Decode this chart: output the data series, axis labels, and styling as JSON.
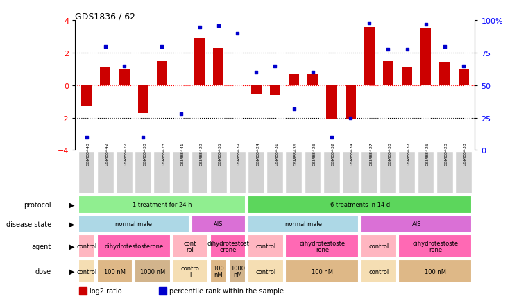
{
  "title": "GDS1836 / 62",
  "samples": [
    "GSM88440",
    "GSM88442",
    "GSM88422",
    "GSM88438",
    "GSM88423",
    "GSM88441",
    "GSM88429",
    "GSM88435",
    "GSM88439",
    "GSM88424",
    "GSM88431",
    "GSM88436",
    "GSM88426",
    "GSM88432",
    "GSM88434",
    "GSM88427",
    "GSM88430",
    "GSM88437",
    "GSM88425",
    "GSM88428",
    "GSM88433"
  ],
  "log2_ratio": [
    -1.3,
    1.1,
    1.0,
    -1.7,
    1.5,
    0.0,
    2.9,
    2.3,
    0.0,
    -0.5,
    -0.6,
    0.7,
    0.7,
    -2.1,
    -2.1,
    3.6,
    1.5,
    1.1,
    3.5,
    1.4,
    1.0
  ],
  "percentile": [
    10,
    80,
    65,
    10,
    80,
    28,
    95,
    96,
    90,
    60,
    65,
    32,
    60,
    10,
    25,
    98,
    78,
    78,
    97,
    80,
    65
  ],
  "protocol_groups": [
    {
      "label": "1 treatment for 24 h",
      "start": 0,
      "end": 8,
      "color": "#90EE90"
    },
    {
      "label": "6 treatments in 14 d",
      "start": 9,
      "end": 20,
      "color": "#5CD65C"
    }
  ],
  "disease_state_groups": [
    {
      "label": "normal male",
      "start": 0,
      "end": 5,
      "color": "#ADD8E6"
    },
    {
      "label": "AIS",
      "start": 6,
      "end": 8,
      "color": "#DA70D6"
    },
    {
      "label": "normal male",
      "start": 9,
      "end": 14,
      "color": "#ADD8E6"
    },
    {
      "label": "AIS",
      "start": 15,
      "end": 20,
      "color": "#DA70D6"
    }
  ],
  "agent_groups": [
    {
      "label": "control",
      "start": 0,
      "end": 0,
      "color": "#FFB6C1"
    },
    {
      "label": "dihydrotestosterone",
      "start": 1,
      "end": 4,
      "color": "#FF69B4"
    },
    {
      "label": "cont\nrol",
      "start": 5,
      "end": 6,
      "color": "#FFB6C1"
    },
    {
      "label": "dihydrotestost\nerone",
      "start": 7,
      "end": 8,
      "color": "#FF69B4"
    },
    {
      "label": "control",
      "start": 9,
      "end": 10,
      "color": "#FFB6C1"
    },
    {
      "label": "dihydrotestoste\nrone",
      "start": 11,
      "end": 14,
      "color": "#FF69B4"
    },
    {
      "label": "control",
      "start": 15,
      "end": 16,
      "color": "#FFB6C1"
    },
    {
      "label": "dihydrotestoste\nrone",
      "start": 17,
      "end": 20,
      "color": "#FF69B4"
    }
  ],
  "dose_groups": [
    {
      "label": "control",
      "start": 0,
      "end": 0,
      "color": "#F5DEB3"
    },
    {
      "label": "100 nM",
      "start": 1,
      "end": 2,
      "color": "#DEB887"
    },
    {
      "label": "1000 nM",
      "start": 3,
      "end": 4,
      "color": "#D2B48C"
    },
    {
      "label": "contro\nl",
      "start": 5,
      "end": 6,
      "color": "#F5DEB3"
    },
    {
      "label": "100\nnM",
      "start": 7,
      "end": 7,
      "color": "#DEB887"
    },
    {
      "label": "1000\nnM",
      "start": 8,
      "end": 8,
      "color": "#D2B48C"
    },
    {
      "label": "control",
      "start": 9,
      "end": 10,
      "color": "#F5DEB3"
    },
    {
      "label": "100 nM",
      "start": 11,
      "end": 14,
      "color": "#DEB887"
    },
    {
      "label": "control",
      "start": 15,
      "end": 16,
      "color": "#F5DEB3"
    },
    {
      "label": "100 nM",
      "start": 17,
      "end": 20,
      "color": "#DEB887"
    }
  ],
  "bar_color": "#CC0000",
  "dot_color": "#0000CC",
  "ylim": [
    -4,
    4
  ],
  "yticks_left": [
    -4,
    -2,
    0,
    2,
    4
  ],
  "yticks_right": [
    0,
    25,
    50,
    75,
    100
  ],
  "ytick_labels_right": [
    "0",
    "25",
    "50",
    "75",
    "100%"
  ],
  "row_labels": [
    "protocol",
    "disease state",
    "agent",
    "dose"
  ],
  "background_color": "#ffffff",
  "sample_box_color": "#D3D3D3",
  "legend_log2": "log2 ratio",
  "legend_pct": "percentile rank within the sample"
}
